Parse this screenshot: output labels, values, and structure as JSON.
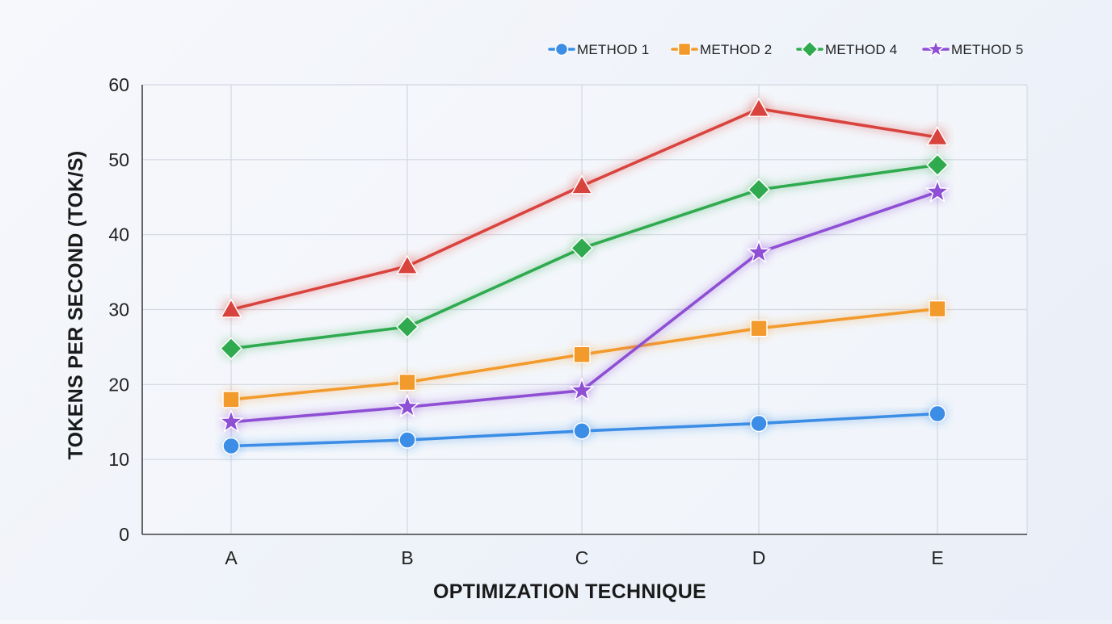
{
  "chart_data": {
    "type": "line",
    "title": "",
    "xlabel": "OPTIMIZATION TECHNIQUE",
    "ylabel": "TOKENS PER SECOND (TOK/S)",
    "categories": [
      "A",
      "B",
      "C",
      "D",
      "E"
    ],
    "ylim": [
      0,
      60
    ],
    "yticks": [
      0,
      10,
      20,
      30,
      40,
      50,
      60
    ],
    "grid": true,
    "legend_position": "top-right",
    "series": [
      {
        "name": "METHOD 1",
        "color": "#3b8de6",
        "marker": "circle",
        "in_legend": true,
        "values": [
          11.8,
          12.6,
          13.8,
          14.8,
          16.1
        ]
      },
      {
        "name": "METHOD 2",
        "color": "#f39a2c",
        "marker": "square",
        "in_legend": true,
        "values": [
          18.0,
          20.3,
          24.0,
          27.5,
          30.1
        ]
      },
      {
        "name": "",
        "color": "#d9433d",
        "marker": "triangle",
        "in_legend": false,
        "values": [
          30.0,
          35.8,
          46.5,
          56.8,
          53.0
        ]
      },
      {
        "name": "METHOD 4",
        "color": "#2faa4f",
        "marker": "diamond",
        "in_legend": true,
        "values": [
          24.8,
          27.7,
          38.2,
          46.0,
          49.3
        ]
      },
      {
        "name": "METHOD 5",
        "color": "#8e4fd4",
        "marker": "star",
        "in_legend": true,
        "values": [
          15.0,
          17.0,
          19.2,
          37.6,
          45.7
        ]
      }
    ]
  }
}
